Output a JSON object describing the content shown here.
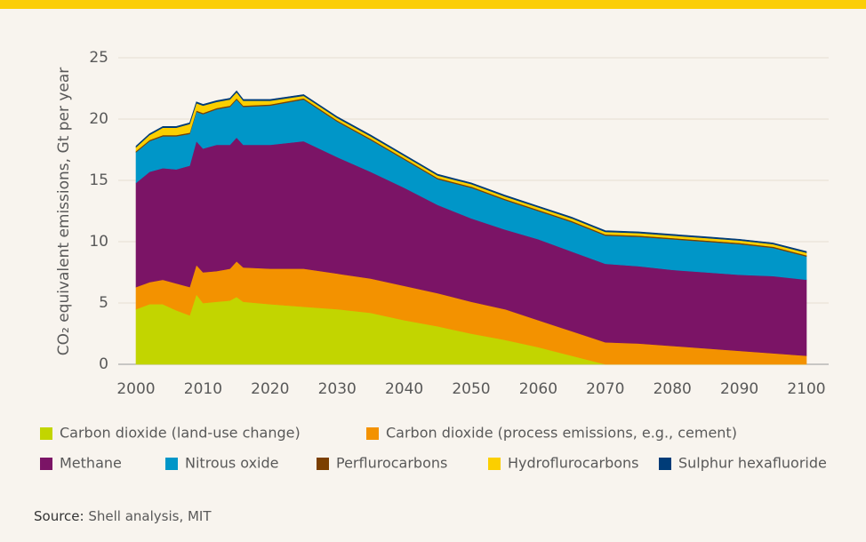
{
  "chart_data": {
    "type": "stacked_area",
    "y_label": "CO₂ equivalent emissions, Gt per year",
    "source_label": "Source:",
    "source": "Shell analysis, MIT",
    "x": [
      2000,
      2002,
      2004,
      2006,
      2008,
      2009,
      2010,
      2012,
      2014,
      2015,
      2016,
      2020,
      2025,
      2030,
      2035,
      2040,
      2045,
      2050,
      2055,
      2060,
      2065,
      2070,
      2075,
      2080,
      2085,
      2090,
      2095,
      2100
    ],
    "series": [
      {
        "name": "Carbon dioxide (land-use change)",
        "color": "#c2d500",
        "values": [
          4.5,
          4.9,
          4.9,
          4.4,
          4.0,
          5.7,
          5.0,
          5.1,
          5.2,
          5.5,
          5.1,
          4.9,
          4.7,
          4.5,
          4.2,
          3.6,
          3.1,
          2.5,
          2.0,
          1.4,
          0.7,
          0,
          0,
          0,
          0,
          0,
          0,
          0
        ]
      },
      {
        "name": "Carbon dioxide (process emissions, e.g., cement)",
        "color": "#f39200",
        "values": [
          1.8,
          1.8,
          2.0,
          2.2,
          2.3,
          2.4,
          2.5,
          2.5,
          2.6,
          2.9,
          2.8,
          2.9,
          3.1,
          2.9,
          2.8,
          2.8,
          2.7,
          2.6,
          2.5,
          2.2,
          2.0,
          1.8,
          1.7,
          1.5,
          1.3,
          1.1,
          0.9,
          0.7
        ]
      },
      {
        "name": "Methane",
        "color": "#7b1466",
        "values": [
          8.5,
          9.0,
          9.1,
          9.3,
          9.9,
          10.1,
          10.1,
          10.3,
          10.1,
          10.1,
          10.0,
          10.1,
          10.4,
          9.5,
          8.7,
          8.0,
          7.2,
          6.8,
          6.5,
          6.6,
          6.5,
          6.4,
          6.3,
          6.2,
          6.2,
          6.2,
          6.3,
          6.2
        ]
      },
      {
        "name": "Nitrous oxide",
        "color": "#0096c8",
        "values": [
          2.5,
          2.5,
          2.6,
          2.7,
          2.6,
          2.4,
          2.8,
          2.9,
          3.1,
          3.1,
          3.1,
          3.2,
          3.4,
          2.9,
          2.6,
          2.3,
          2.1,
          2.5,
          2.4,
          2.3,
          2.4,
          2.3,
          2.4,
          2.5,
          2.5,
          2.5,
          2.3,
          1.9
        ]
      },
      {
        "name": "Perflurocarbons",
        "color": "#7b3f00",
        "values": [
          0.1,
          0.1,
          0.1,
          0.1,
          0.1,
          0.1,
          0.1,
          0.1,
          0.1,
          0.1,
          0.1,
          0.1,
          0.1,
          0.1,
          0.1,
          0.1,
          0.1,
          0.1,
          0.1,
          0.1,
          0.1,
          0.1,
          0.1,
          0.1,
          0.1,
          0.1,
          0.1,
          0.1
        ]
      },
      {
        "name": "Hydroflurocarbons",
        "color": "#fbcf00",
        "values": [
          0.3,
          0.4,
          0.6,
          0.6,
          0.7,
          0.6,
          0.6,
          0.5,
          0.5,
          0.5,
          0.4,
          0.3,
          0.2,
          0.2,
          0.2,
          0.2,
          0.2,
          0.2,
          0.2,
          0.2,
          0.2,
          0.2,
          0.2,
          0.2,
          0.2,
          0.2,
          0.2,
          0.2
        ]
      },
      {
        "name": "Sulphur hexafluoride",
        "color": "#003c78",
        "values": [
          0.1,
          0.1,
          0.1,
          0.1,
          0.1,
          0.1,
          0.1,
          0.1,
          0.1,
          0.1,
          0.1,
          0.1,
          0.1,
          0.1,
          0.1,
          0.1,
          0.1,
          0.1,
          0.1,
          0.1,
          0.1,
          0.1,
          0.1,
          0.1,
          0.1,
          0.1,
          0.1,
          0.1
        ]
      }
    ],
    "xlim": [
      2000,
      2100
    ],
    "xticks": [
      2000,
      2010,
      2020,
      2030,
      2040,
      2050,
      2060,
      2070,
      2080,
      2090,
      2100
    ],
    "ylim": [
      0,
      25
    ],
    "yticks": [
      0,
      5,
      10,
      15,
      20,
      25
    ],
    "grid": true
  }
}
